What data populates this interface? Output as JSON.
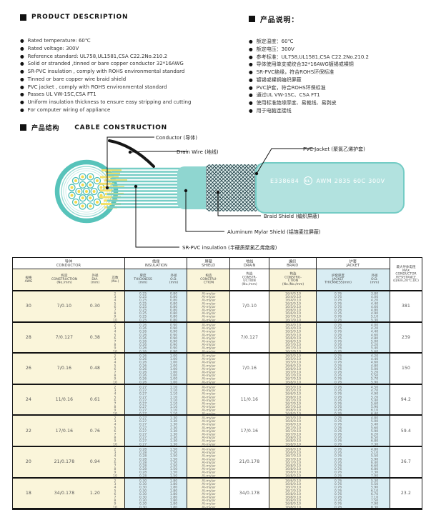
{
  "bullet_icon": "●",
  "product_description": {
    "title_en": "PRODUCT DESCRIPTION",
    "title_zh": "产品说明：",
    "items_en": [
      "Rated temperature: 60℃",
      "Rated voltage: 300V",
      "Reference standard: UL758,UL1581,CSA C22.2No.210.2",
      "Solid or stranded ,tinned or bare copper conductor 32*16AWG",
      "SR-PVC insulation , comply with ROHS environmental standard",
      "Tinned or bare copper wire braid shield",
      "PVC jacket , comply with ROHS environmental standard",
      "Passes UL VW-1SC,CSA FT1",
      "Uniform insulation thickness to ensure easy stripping and cutting",
      "For computer wiring of appliance"
    ],
    "items_zh": [
      "额定温度：60℃",
      "额定电压：300V",
      "参考标准：UL758,UL1581,CSA C22.2No.210.2",
      "导体使用单支或绞合32*16AWG镀锡或裸铜",
      "SR-PVC绝缘，符合ROHS环保标准",
      "镀锡或裸铜编织屏蔽",
      "PVC护套，符合ROHS环保标准",
      "通过UL VW-1SC、CSA FT1",
      "使用标准绝缘厚度、易裁线、易剥皮",
      "用于电脑连接线"
    ]
  },
  "construction": {
    "title_zh": "产品结构",
    "title_en": "CABLE CONSTRUCTION",
    "labels": {
      "conductor": "Conductor (导体)",
      "drain_wire": "Drain Wire (地线)",
      "pvc_jacket": "PVC Jacket (聚氯乙烯护套)",
      "braid_shield": "Braid Shield (编织屏蔽)",
      "aluminum_mylar_shield": "Aluminum Mylar Shield (铝箔麦拉屏蔽)",
      "sr_pvc_insulation": "SR-PVC insulation (半硬质聚氯乙烯绝缘)"
    },
    "jacket_print": {
      "cert": "E338684",
      "ul": "UL",
      "spec": "AWM 2835 60C 300V"
    },
    "colors": {
      "teal": "#57C3BA",
      "jacket_fill": "#B2E2DF",
      "strand_yellow": "#F3E068"
    }
  },
  "table": {
    "groups": [
      {
        "zh": "导体",
        "en": "CONDUCTOR"
      },
      {
        "zh": "绝缘",
        "en": "INSULATION"
      },
      {
        "zh": "屏蔽",
        "en": "SHIELD"
      },
      {
        "zh": "地线",
        "en": "DRAIN"
      },
      {
        "zh": "编织",
        "en": "BRAID"
      },
      {
        "zh": "护套",
        "en": "JACKET"
      }
    ],
    "columns": {
      "awg": "规格\nAWG",
      "construction": "构造\nCONSTRUCTION\n(No./mm)",
      "dia": "外径\nDIA.\n(mm)",
      "cores": "芯数\n(No.)",
      "thickness": "厚度\nTHICKNESS\n(mm)",
      "od": "外径\nO.D.\n(mm)",
      "shield_construction": "构造\nCONSTRU-\nCTION",
      "drain_construction": "构造\nCONSTR-\nUCTION\n(No./mm)",
      "braid_construction": "构造\nCONSTRU-\nCTION\n(No./No./mm)",
      "jacket_thickness": "护套厚度\nJACKET\nTHICKNESS(mm)",
      "jacket_od": "外径\nO.D.\n(mm)",
      "resistance": "最大导体电阻\nMAX\nCONDUCTOR\nRESISTANCE\n(Ω/km,20℃,DC)"
    },
    "cores": [
      "2",
      "3",
      "4",
      "5",
      "6",
      "7",
      "8",
      "9",
      "10"
    ],
    "rows": [
      {
        "awg": "30",
        "construction": "7/0.10",
        "dia": "0.30",
        "ins_thickness": "0.25",
        "ins_od": "0.80",
        "shield": "Al-mylar",
        "drain": "7/0.10",
        "braid": [
          "16/4/0.10",
          "16/4/0.10",
          "16/4/0.10",
          "16/5/0.10",
          "16/5/0.10",
          "16/6/0.10",
          "16/6/0.10",
          "16/7/0.10",
          "16/7/0.10"
        ],
        "jacket_thickness": "0.76",
        "jacket_od": [
          "3.80",
          "4.00",
          "4.20",
          "4.40",
          "4.60",
          "4.80",
          "4.90",
          "5.10",
          "5.30"
        ],
        "resistance": "381"
      },
      {
        "awg": "28",
        "construction": "7/0.127",
        "dia": "0.38",
        "ins_thickness": "0.26",
        "ins_od": "0.90",
        "shield": "Al-mylar",
        "drain": "7/0.127",
        "braid": [
          "16/4/0.10",
          "16/4/0.10",
          "16/5/0.10",
          "16/5/0.10",
          "16/6/0.10",
          "16/6/0.10",
          "16/7/0.10",
          "16/7/0.10",
          "16/7/0.10"
        ],
        "jacket_thickness": "0.76",
        "jacket_od": [
          "4.00",
          "4.20",
          "4.40",
          "4.60",
          "4.80",
          "5.00",
          "5.20",
          "5.40",
          "5.60"
        ],
        "resistance": "239"
      },
      {
        "awg": "26",
        "construction": "7/0.16",
        "dia": "0.48",
        "ins_thickness": "0.26",
        "ins_od": "1.00",
        "shield": "Al-mylar",
        "drain": "7/0.16",
        "braid": [
          "16/5/0.10",
          "16/5/0.10",
          "16/5/0.10",
          "16/6/0.10",
          "16/6/0.10",
          "16/7/0.10",
          "16/7/0.10",
          "16/7/0.10",
          "16/8/0.10"
        ],
        "jacket_thickness": "0.76",
        "jacket_od": [
          "4.20",
          "4.40",
          "4.60",
          "4.80",
          "5.00",
          "5.20",
          "5.50",
          "5.70",
          "5.90"
        ],
        "resistance": "150"
      },
      {
        "awg": "24",
        "construction": "11/0.16",
        "dia": "0.61",
        "ins_thickness": "0.27",
        "ins_od": "1.10",
        "shield": "Al-mylar",
        "drain": "11/0.16",
        "braid": [
          "16/5/0.10",
          "16/5/0.10",
          "16/6/0.10",
          "16/6/0.10",
          "16/7/0.10",
          "16/7/0.10",
          "16/7/0.10",
          "16/8/0.10",
          "16/8/0.10"
        ],
        "jacket_thickness": "0.76",
        "jacket_od": [
          "4.50",
          "4.70",
          "4.90",
          "5.20",
          "5.40",
          "5.60",
          "5.90",
          "6.10",
          "6.40"
        ],
        "resistance": "94.2"
      },
      {
        "awg": "22",
        "construction": "17/0.16",
        "dia": "0.76",
        "ins_thickness": "0.27",
        "ins_od": "1.30",
        "shield": "Al-mylar",
        "drain": "17/0.16",
        "braid": [
          "16/5/0.10",
          "16/6/0.10",
          "16/6/0.10",
          "16/7/0.10",
          "16/7/0.10",
          "16/7/0.10",
          "16/8/0.10",
          "16/8/0.10",
          "16/8/0.10"
        ],
        "jacket_thickness": "0.76",
        "jacket_od": [
          "4.80",
          "5.00",
          "5.40",
          "5.60",
          "5.90",
          "6.20",
          "6.50",
          "6.80",
          "7.30"
        ],
        "resistance": "59.4"
      },
      {
        "awg": "20",
        "construction": "21/0.178",
        "dia": "0.94",
        "ins_thickness": "0.28",
        "ins_od": "1.50",
        "shield": "Al-mylar",
        "drain": "21/0.178",
        "braid": [
          "16/6/0.10",
          "16/6/0.10",
          "16/7/0.10",
          "16/7/0.10",
          "16/7/0.10",
          "16/8/0.10",
          "16/8/0.10",
          "16/8/0.10",
          "16/8/0.10"
        ],
        "jacket_thickness": "0.76",
        "jacket_od": [
          "4.80",
          "5.10",
          "5.50",
          "5.90",
          "6.40",
          "6.60",
          "6.80",
          "7.30",
          "7.90"
        ],
        "resistance": "36.7"
      },
      {
        "awg": "18",
        "construction": "34/0.178",
        "dia": "1.20",
        "ins_thickness": "0.30",
        "ins_od": "1.80",
        "shield": "Al-mylar",
        "drain": "34/0.178",
        "braid": [
          "16/6/0.10",
          "16/6/0.10",
          "16/7/0.10",
          "16/7/0.10",
          "16/8/0.10",
          "16/8/0.10",
          "16/8/0.10",
          "16/8/0.10",
          "16/8/0.10"
        ],
        "jacket_thickness": "0.76",
        "jacket_od": [
          "5.30",
          "5.50",
          "5.90",
          "6.10",
          "6.70",
          "7.10",
          "7.50",
          "7.90",
          "8.30"
        ],
        "resistance": "23.2"
      }
    ]
  }
}
